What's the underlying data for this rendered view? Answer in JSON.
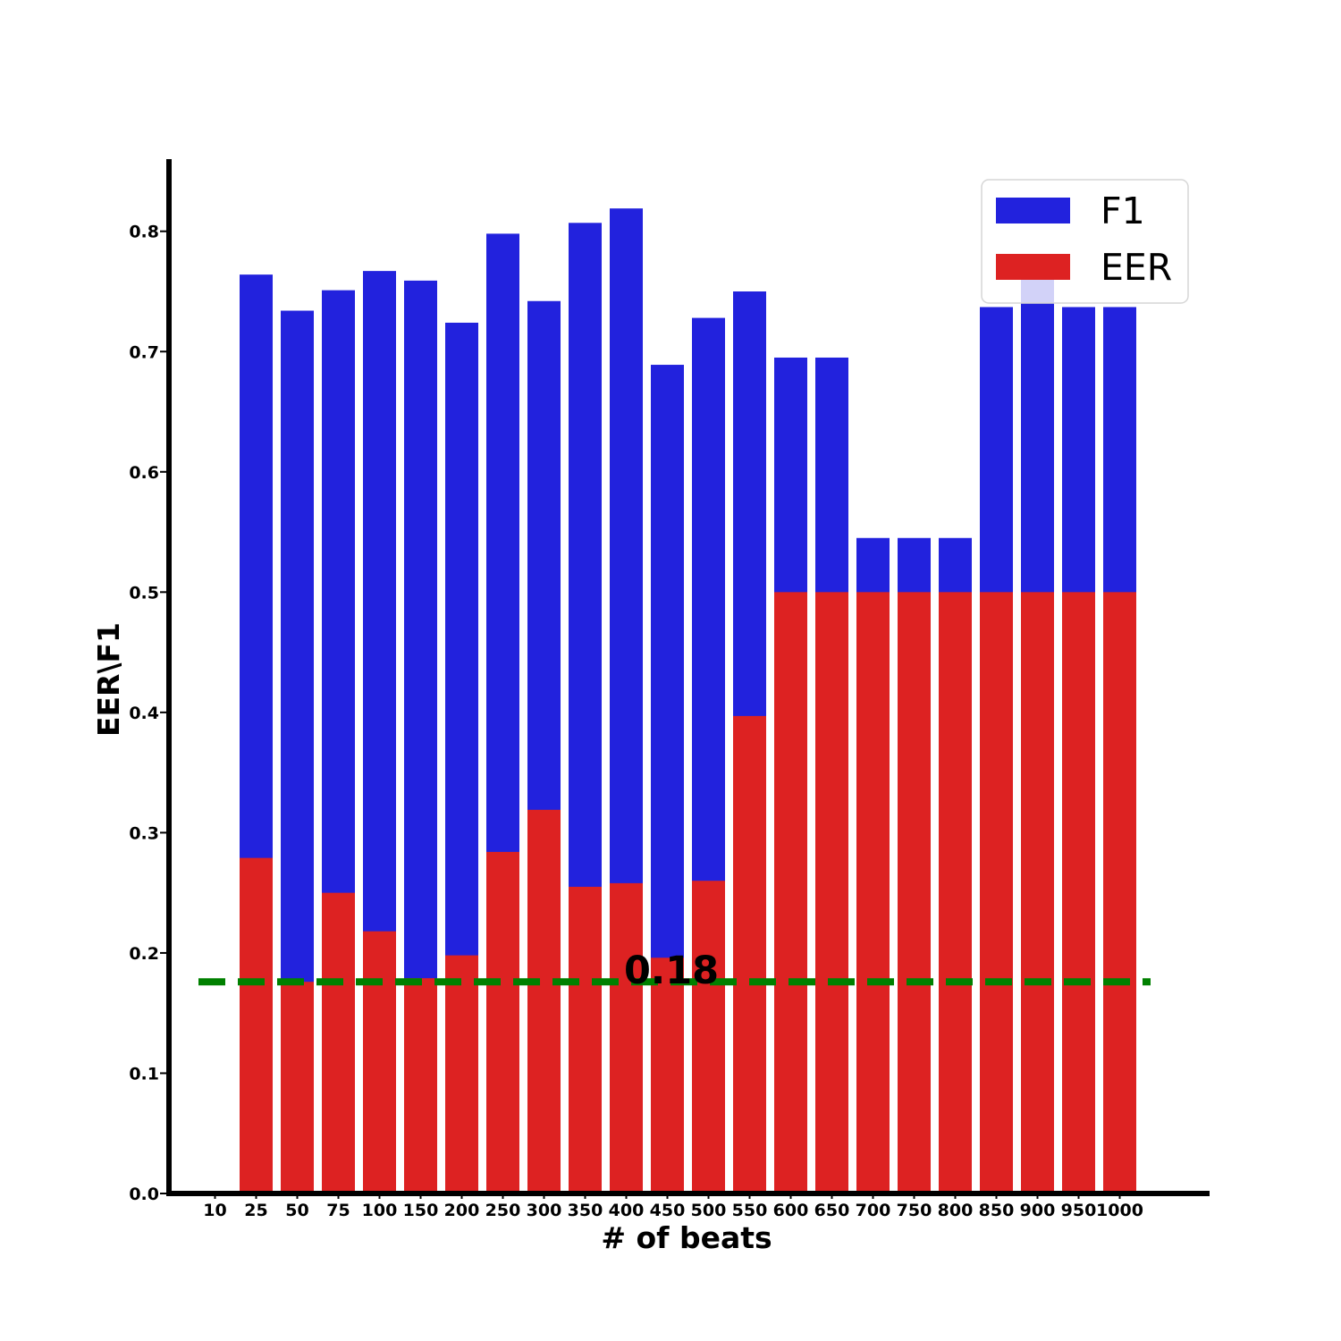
{
  "chart_data": {
    "type": "bar",
    "stacked_overlay": true,
    "categories": [
      "10",
      "25",
      "50",
      "75",
      "100",
      "150",
      "200",
      "250",
      "300",
      "350",
      "400",
      "450",
      "500",
      "550",
      "600",
      "650",
      "700",
      "750",
      "800",
      "850",
      "900",
      "950",
      "1000"
    ],
    "series": [
      {
        "name": "F1",
        "color": "#2222dd",
        "values": [
          0,
          0.764,
          0.734,
          0.751,
          0.767,
          0.759,
          0.724,
          0.798,
          0.742,
          0.807,
          0.819,
          0.689,
          0.728,
          0.75,
          0.695,
          0.695,
          0.545,
          0.545,
          0.545,
          0.737,
          0.765,
          0.737,
          0.737
        ]
      },
      {
        "name": "EER",
        "color": "#dd2222",
        "values": [
          0,
          0.279,
          0.176,
          0.25,
          0.218,
          0.179,
          0.198,
          0.284,
          0.319,
          0.255,
          0.258,
          0.196,
          0.26,
          0.397,
          0.5,
          0.5,
          0.5,
          0.5,
          0.5,
          0.5,
          0.5,
          0.5,
          0.5
        ]
      }
    ],
    "reference_line": {
      "value": 0.176,
      "label": "0.18",
      "color": "#008000",
      "style": "dashed"
    },
    "xlabel": "# of beats",
    "ylabel": "EER\\F1",
    "ylim": [
      0,
      0.86
    ],
    "yticks": [
      "0.0",
      "0.1",
      "0.2",
      "0.3",
      "0.4",
      "0.5",
      "0.6",
      "0.7",
      "0.8"
    ],
    "grid": false,
    "legend": {
      "placement": "top-right",
      "entries": [
        "F1",
        "EER"
      ]
    }
  }
}
